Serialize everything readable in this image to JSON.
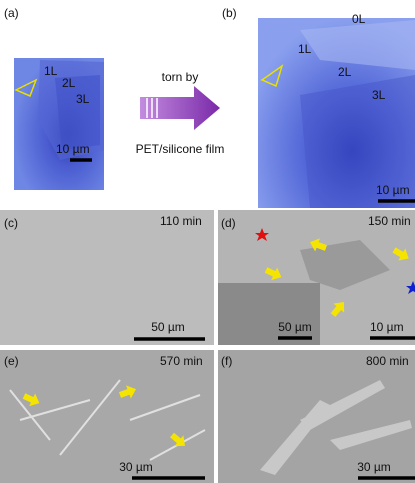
{
  "figure": {
    "panel_a": {
      "label": "(a)",
      "layers": [
        "1L",
        "2L",
        "3L"
      ],
      "scale": "10 µm"
    },
    "process": {
      "top": "torn by",
      "bottom": "PET/silicone film"
    },
    "panel_b": {
      "label": "(b)",
      "layers": [
        "0L",
        "1L",
        "2L",
        "3L"
      ],
      "scale": "10 µm"
    },
    "panel_c": {
      "label": "(c)",
      "time": "110 min",
      "scale": "50 µm"
    },
    "panel_d": {
      "label": "(d)",
      "time": "150 min",
      "inset_scale": "50 µm",
      "scale": "10 µm"
    },
    "panel_e": {
      "label": "(e)",
      "time": "570 min",
      "scale": "30 µm"
    },
    "panel_f": {
      "label": "(f)",
      "time": "800 min",
      "scale": "30 µm"
    }
  }
}
